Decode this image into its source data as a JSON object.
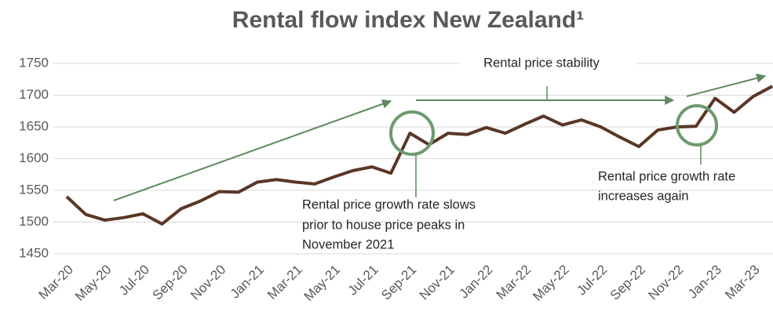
{
  "chart_data": {
    "type": "line",
    "title": "Rental flow index New Zealand¹",
    "categories": [
      "Mar-20",
      null,
      "May-20",
      null,
      "Jul-20",
      null,
      "Sep-20",
      null,
      "Nov-20",
      null,
      "Jan-21",
      null,
      "Mar-21",
      null,
      "May-21",
      null,
      "Jul-21",
      null,
      "Sep-21",
      null,
      "Nov-21",
      null,
      "Jan-22",
      null,
      "Mar-22",
      null,
      "May-22",
      null,
      "Jul-22",
      null,
      "Sep-22",
      null,
      "Nov-22",
      null,
      "Jan-23",
      null,
      "Mar-23",
      null
    ],
    "series": [
      {
        "name": "Rental flow index",
        "color": "#5a3626",
        "values": [
          1540,
          1512,
          1503,
          1507,
          1513,
          1497,
          1521,
          1533,
          1548,
          1547,
          1563,
          1567,
          1563,
          1560,
          1571,
          1581,
          1587,
          1577,
          1640,
          1622,
          1640,
          1638,
          1649,
          1640,
          1654,
          1667,
          1653,
          1661,
          1650,
          1634,
          1619,
          1645,
          1650,
          1651,
          1695,
          1673,
          1698,
          1714
        ]
      }
    ],
    "ylim": [
      1450,
      1750
    ],
    "yticks": [
      1450,
      1500,
      1550,
      1600,
      1650,
      1700,
      1750
    ],
    "grid": true,
    "annotations": {
      "stability": "Rental price stability",
      "slows": [
        "Rental price growth rate slows",
        "prior to house price peaks in",
        "November 2021"
      ],
      "increases": [
        "Rental price growth rate",
        "increases again"
      ]
    }
  }
}
